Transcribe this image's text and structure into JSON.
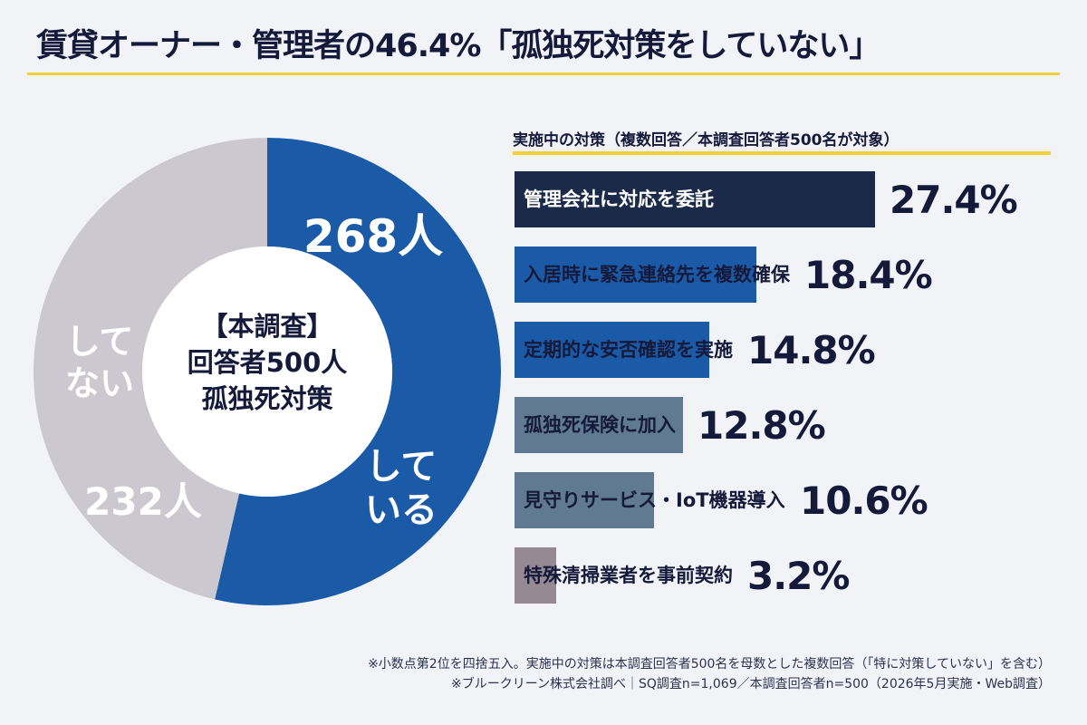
{
  "title": "賃貸オーナー・管理者の46.4%「孤独死対策をしていない」",
  "colors": {
    "navy": "#1c2a4a",
    "blue": "#1a5aa7",
    "slate": "#5f7a92",
    "mauve": "#958994",
    "gray": "#cbc9cf",
    "accent": "#f3cf3b"
  },
  "donut": {
    "center_lines": [
      "【本調査】",
      "回答者500人",
      "孤独死対策"
    ],
    "doing_count_label": "268人",
    "doing_text": [
      "して",
      "いる"
    ],
    "not_doing_count_label": "232人",
    "not_doing_text": [
      "して",
      "ない"
    ]
  },
  "chart_data": [
    {
      "type": "pie",
      "categories": [
        "している",
        "していない"
      ],
      "values": [
        268,
        232
      ],
      "colors": [
        "#1a5aa7",
        "#cbc9cf"
      ],
      "data_labels": [
        "268人",
        "232人"
      ],
      "legend": "none"
    },
    {
      "type": "bar",
      "orientation": "horizontal",
      "title": "実施中の対策（複数回答／本調査回答者500名が対象）",
      "categories": [
        "管理会社に対応を委託",
        "入居時に緊急連絡先を複数確保",
        "定期的な安否確認を実施",
        "孤独死保険に加入",
        "見守りサービス・IoT機器導入",
        "特殊清掃業者を事前契約"
      ],
      "values": [
        27.4,
        18.4,
        14.8,
        12.8,
        10.6,
        3.2
      ],
      "value_labels": [
        "27.4%",
        "18.4%",
        "14.8%",
        "12.8%",
        "10.6%",
        "3.2%"
      ],
      "bar_colors": [
        "#1c2a4a",
        "#1a5aa7",
        "#1a5aa7",
        "#5f7a92",
        "#5f7a92",
        "#958994"
      ],
      "xlim": [
        0,
        27.4
      ],
      "grid": false,
      "legend": "none"
    }
  ],
  "footnotes": [
    "※小数点第2位を四捨五入。実施中の対策は本調査回答者500名を母数とした複数回答（「特に対策していない」を含む）",
    "※ブルークリーン株式会社調べ｜SQ調査n=1,069／本調査回答者n=500（2026年5月実施・Web調査）"
  ]
}
